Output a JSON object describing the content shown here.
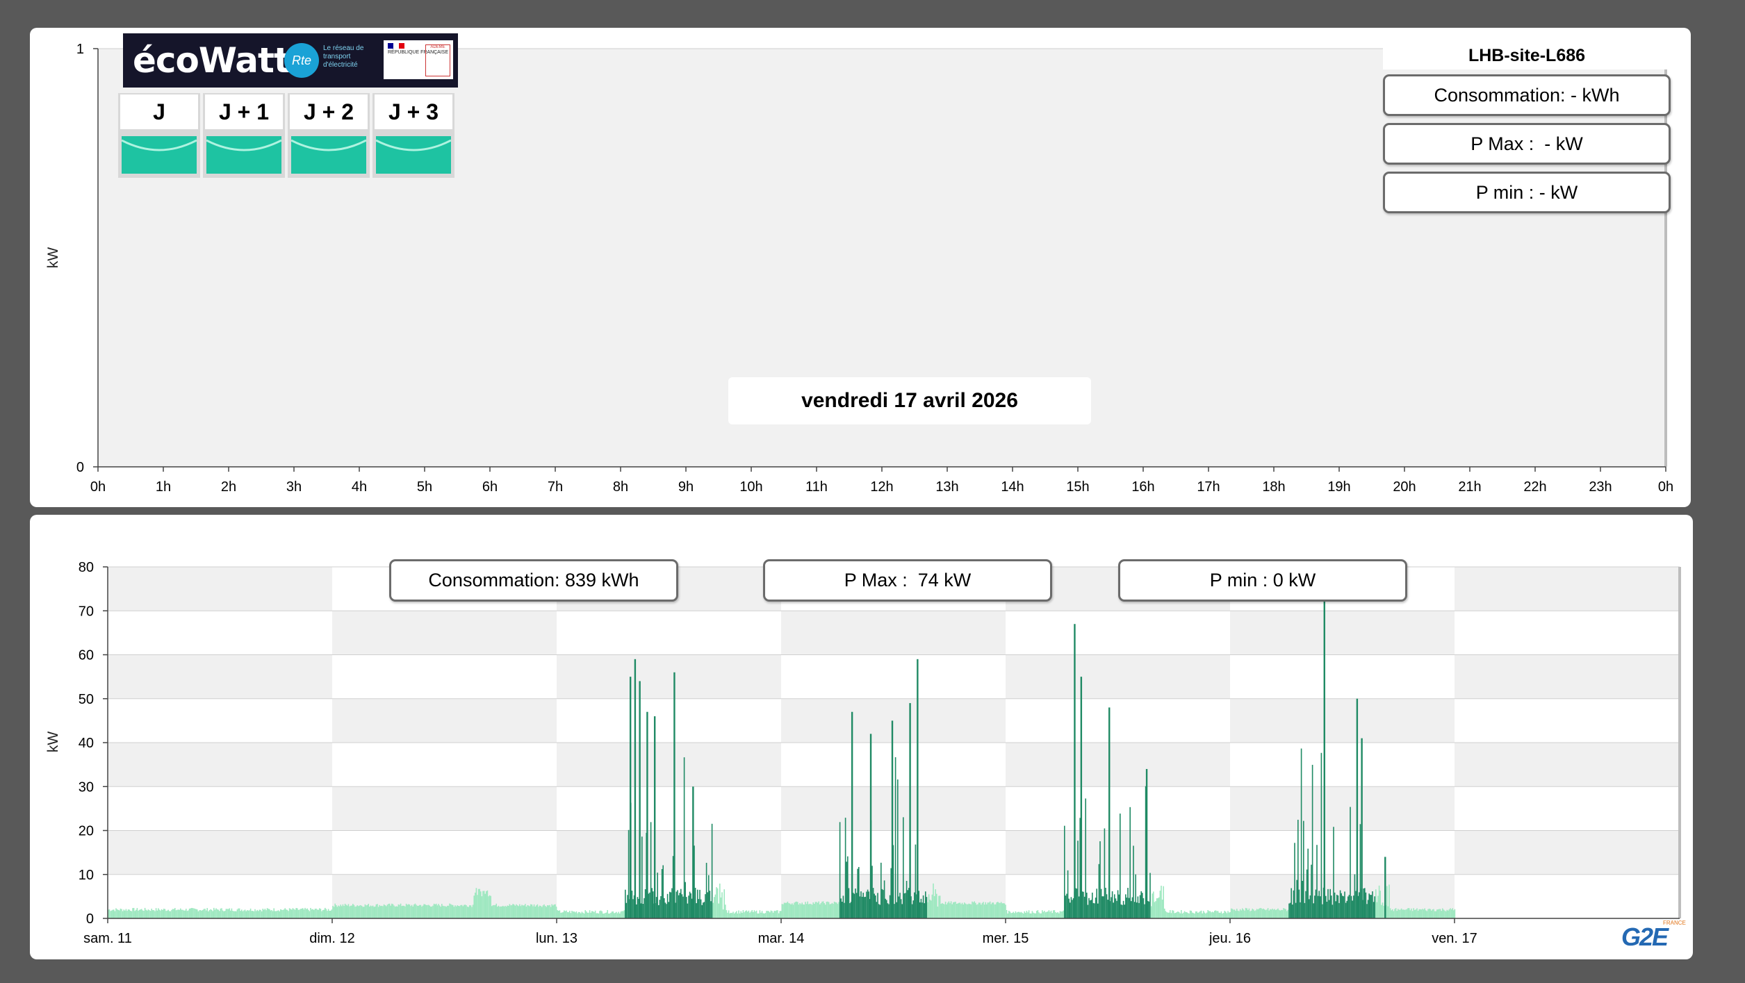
{
  "site": {
    "name": "LHB-site-L686"
  },
  "top_panel": {
    "date_label": "vendredi 17 avril 2026",
    "consumption": "Consommation: - kWh",
    "pmax": "P Max :  - kW",
    "pmin": "P min : - kW"
  },
  "ecowatt": {
    "logo_text": "écoWatt",
    "rte_logo": "Rte",
    "rte_text": "Le réseau de transport d'électricité",
    "republique_text": "RÉPUBLIQUE FRANÇAISE",
    "ademe_text": "ADEME",
    "days": [
      {
        "label": "J",
        "color": "#1ec3a2"
      },
      {
        "label": "J + 1",
        "color": "#1ec3a2"
      },
      {
        "label": "J + 2",
        "color": "#1ec3a2"
      },
      {
        "label": "J + 3",
        "color": "#1ec3a2"
      }
    ]
  },
  "bottom_panel": {
    "consumption": "Consommation: 839 kWh",
    "pmax": "P Max :  74 kW",
    "pmin": "P min : 0 kW"
  },
  "logo": {
    "text": "G2E",
    "sub": "FRANCE"
  },
  "chart_data": [
    {
      "type": "bar",
      "title": "",
      "ylabel": "kW",
      "xlabel": "",
      "ylim": [
        0,
        1
      ],
      "y_ticks": [
        0,
        1
      ],
      "x_ticks": [
        "0h",
        "1h",
        "2h",
        "3h",
        "4h",
        "5h",
        "6h",
        "7h",
        "8h",
        "9h",
        "10h",
        "11h",
        "12h",
        "13h",
        "14h",
        "15h",
        "16h",
        "17h",
        "18h",
        "19h",
        "20h",
        "21h",
        "22h",
        "23h",
        "0h"
      ],
      "values": [],
      "grid": false
    },
    {
      "type": "bar",
      "title": "",
      "ylabel": "kW",
      "xlabel": "",
      "ylim": [
        0,
        80
      ],
      "y_ticks": [
        0,
        10,
        20,
        30,
        40,
        50,
        60,
        70,
        80
      ],
      "x_ticks": [
        "sam. 11",
        "dim. 12",
        "lun. 13",
        "mar. 14",
        "mer. 15",
        "jeu. 16",
        "ven. 17"
      ],
      "grid": true,
      "colors": {
        "off_hours": "#9ee8c0",
        "working_hours": "#1f8a64"
      },
      "baseline_kw": {
        "sam. 11": 2,
        "dim. 12": 3,
        "lun. 13": 1.5,
        "mar. 14": 3.5,
        "mer. 15": 1.5,
        "jeu. 16": 2
      },
      "working_hours": [
        {
          "day": "lun. 13",
          "start_h": 7.2,
          "end_h": 16.6
        },
        {
          "day": "mar. 14",
          "start_h": 6.2,
          "end_h": 15.5
        },
        {
          "day": "mer. 15",
          "start_h": 6.2,
          "end_h": 15.5
        },
        {
          "day": "jeu. 16",
          "start_h": 6.2,
          "end_h": 15.5
        }
      ],
      "peaks": [
        {
          "day": "lun. 13",
          "hour": 7.8,
          "kw": 55
        },
        {
          "day": "lun. 13",
          "hour": 8.3,
          "kw": 59
        },
        {
          "day": "lun. 13",
          "hour": 8.8,
          "kw": 54
        },
        {
          "day": "lun. 13",
          "hour": 9.6,
          "kw": 47
        },
        {
          "day": "lun. 13",
          "hour": 10.4,
          "kw": 46
        },
        {
          "day": "lun. 13",
          "hour": 12.5,
          "kw": 56
        },
        {
          "day": "lun. 13",
          "hour": 14.5,
          "kw": 30
        },
        {
          "day": "mar. 14",
          "hour": 7.5,
          "kw": 47
        },
        {
          "day": "mar. 14",
          "hour": 9.5,
          "kw": 42
        },
        {
          "day": "mar. 14",
          "hour": 11.8,
          "kw": 45
        },
        {
          "day": "mar. 14",
          "hour": 13.7,
          "kw": 49
        },
        {
          "day": "mar. 14",
          "hour": 14.5,
          "kw": 59
        },
        {
          "day": "mer. 15",
          "hour": 7.3,
          "kw": 67
        },
        {
          "day": "mer. 15",
          "hour": 8.0,
          "kw": 55
        },
        {
          "day": "mer. 15",
          "hour": 11.0,
          "kw": 48
        },
        {
          "day": "mer. 15",
          "hour": 15.0,
          "kw": 34
        },
        {
          "day": "jeu. 16",
          "hour": 10.0,
          "kw": 74
        },
        {
          "day": "jeu. 16",
          "hour": 13.5,
          "kw": 50
        },
        {
          "day": "jeu. 16",
          "hour": 14.0,
          "kw": 41
        },
        {
          "day": "jeu. 16",
          "hour": 16.5,
          "kw": 14
        }
      ]
    }
  ]
}
